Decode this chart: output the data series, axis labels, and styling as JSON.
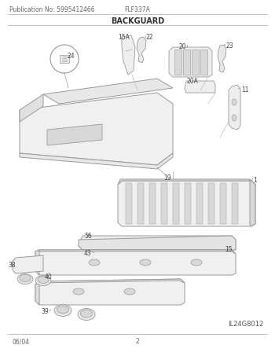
{
  "pub_no": "Publication No: 5995412466",
  "model": "FLF337A",
  "section": "BACKGUARD",
  "footer_left": "06/04",
  "footer_center": "2",
  "watermark": "IL24G8012",
  "bg_color": "#ffffff",
  "line_color": "#999999",
  "text_color": "#444444"
}
